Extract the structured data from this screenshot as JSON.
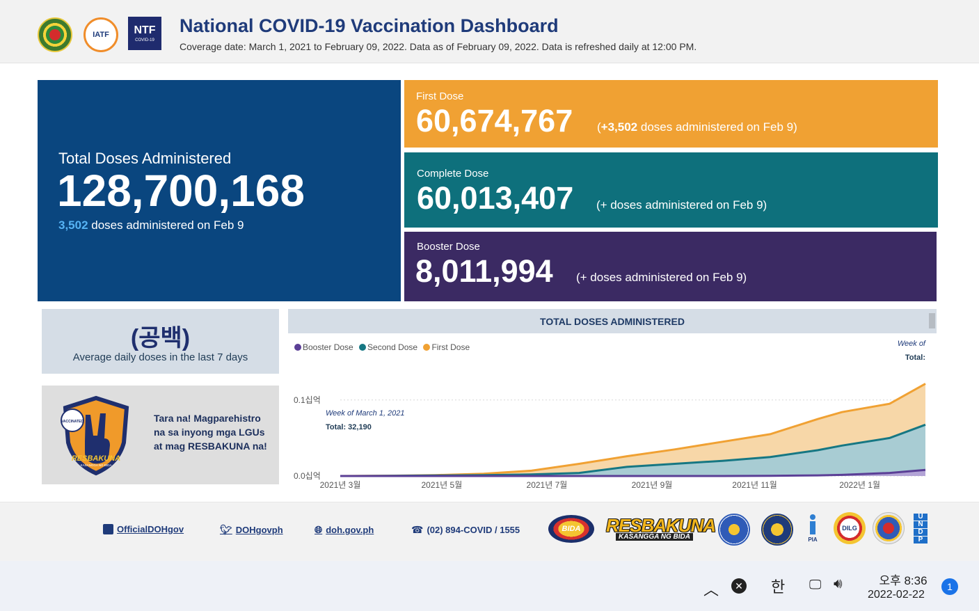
{
  "header": {
    "title": "National COVID-19 Vaccination Dashboard",
    "subtitle": "Coverage date: March 1, 2021 to February 09, 2022. Data as of February 09, 2022. Data is refreshed daily at 12:00 PM.",
    "logos": {
      "iatf": "IATF",
      "ntf": "NTF",
      "ntf_sub": "COVID-19"
    }
  },
  "total": {
    "label": "Total Doses Administered",
    "value": "128,700,168",
    "note_highlight": "3,502",
    "note_text": " doses administered on Feb 9"
  },
  "first_dose": {
    "label": "First Dose",
    "value": "60,674,767",
    "delta_open": "(",
    "delta_bold": "+3,502",
    "delta_text": " doses administered on Feb 9)"
  },
  "complete_dose": {
    "label": "Complete Dose",
    "value": "60,013,407",
    "delta": "(+ doses administered on Feb 9)"
  },
  "booster_dose": {
    "label": "Booster Dose",
    "value": "8,011,994",
    "delta": "(+ doses administered on Feb 9)"
  },
  "average": {
    "value": "(공백)",
    "label": "Average daily doses in the last 7 days"
  },
  "promo": {
    "text": "Tara na! Magparehistro na sa inyong mga LGUs at mag RESBAKUNA na!",
    "badge_top": "VACCINATED",
    "badge_brand": "RESBAKUNA",
    "badge_sub": "KASANGGA NG BIDA"
  },
  "chart_data": {
    "type": "area",
    "title": "TOTAL DOSES ADMINISTERED",
    "legend": [
      "Booster Dose",
      "Second Dose",
      "First Dose"
    ],
    "colors": {
      "booster": "#5b3f96",
      "second": "#167783",
      "first": "#f0a133",
      "booster_fill": "#b3a4d6",
      "second_fill": "#a8ccd3",
      "first_fill": "#f7d7a8"
    },
    "tooltip_week": "Week of",
    "tooltip_total": "Total:",
    "annotation_week": "Week of March 1, 2021",
    "annotation_total": "Total: 32,190",
    "y_ticks": [
      {
        "value": 0,
        "label": "0.0십억"
      },
      {
        "value": 0.1,
        "label": "0.1십억"
      }
    ],
    "x_ticks": [
      {
        "label": "2021년 3월",
        "week": 0
      },
      {
        "label": "2021년 5월",
        "week": 8.5
      },
      {
        "label": "2021년 7월",
        "week": 17.3
      },
      {
        "label": "2021년 9월",
        "week": 26.1
      },
      {
        "label": "2021년 11월",
        "week": 34.7
      },
      {
        "label": "2022년 1월",
        "week": 43.5
      }
    ],
    "ylim": [
      0,
      0.13
    ],
    "weeks": [
      0,
      4,
      8,
      12,
      16,
      20,
      24,
      28,
      32,
      36,
      40,
      42,
      46,
      49
    ],
    "series": [
      {
        "name": "First Dose",
        "values": [
          3e-05,
          0.0004,
          0.0012,
          0.003,
          0.007,
          0.016,
          0.026,
          0.035,
          0.045,
          0.055,
          0.075,
          0.084,
          0.095,
          0.1214
        ]
      },
      {
        "name": "Second Dose",
        "values": [
          1e-05,
          0.0002,
          0.0006,
          0.0012,
          0.002,
          0.004,
          0.012,
          0.016,
          0.02,
          0.025,
          0.034,
          0.04,
          0.05,
          0.0675
        ]
      },
      {
        "name": "Booster Dose",
        "values": [
          0,
          0,
          0,
          0,
          0,
          0,
          0,
          0,
          0,
          0.0002,
          0.0008,
          0.0015,
          0.004,
          0.008
        ]
      }
    ]
  },
  "footer": {
    "links": [
      {
        "label": "OfficialDOHgov",
        "icon": "facebook-icon"
      },
      {
        "label": "DOHgovph",
        "icon": "twitter-icon"
      },
      {
        "label": "doh.gov.ph",
        "icon": "globe-icon"
      },
      {
        "label": "(02) 894-COVID / 1555",
        "icon": "phone-icon"
      }
    ],
    "bida": "BIDA",
    "resbakuna": "RESBAKUNA",
    "resbakuna_sub": "KASANGGA NG BIDA",
    "dilg": "DILG",
    "pia": "PIA",
    "undp": [
      "U",
      "N",
      "D",
      "P"
    ]
  },
  "taskbar": {
    "ime": "한",
    "time": "오후 8:36",
    "date": "2022-02-22",
    "notifications": "1"
  }
}
